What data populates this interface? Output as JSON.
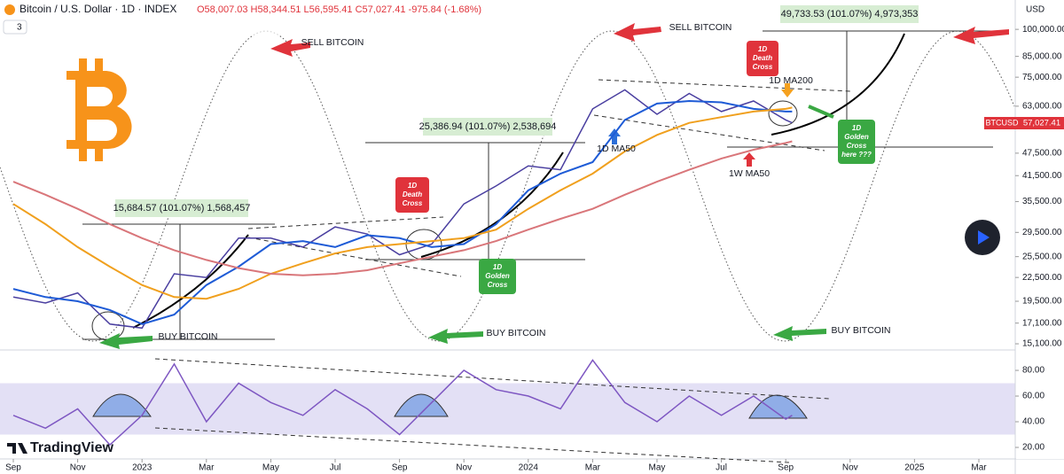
{
  "header": {
    "symbol": "Bitcoin / U.S. Dollar · 1D · INDEX",
    "ohlc": "O58,007.03 H58,344.51 L56,595.41 C57,027.41 -975.84 (-1.68%)",
    "indicators": "3",
    "currency": "USD",
    "ticker": "BTCUSD",
    "last_price": "57,027.41",
    "brand": "TradingView"
  },
  "chart_data": [
    {
      "type": "line",
      "log_scale": true,
      "grid": false,
      "x": [
        0,
        1,
        2,
        3,
        4,
        5,
        6,
        7,
        8,
        9,
        10,
        11,
        12,
        13,
        14,
        15,
        16,
        17,
        18,
        19,
        20,
        21,
        22,
        23,
        24,
        24.2
      ],
      "series": [
        {
          "color": "#4a3fa0",
          "values": [
            20000,
            19300,
            20500,
            17000,
            16600,
            23000,
            22500,
            28500,
            28500,
            27000,
            30500,
            29200,
            25800,
            27500,
            35000,
            39000,
            44000,
            43000,
            62000,
            69500,
            60000,
            68000,
            61000,
            65000,
            58000,
            57027.41
          ]
        },
        {
          "color": "#1e5bd6",
          "values": [
            21000,
            20000,
            19500,
            18500,
            17000,
            18000,
            21500,
            24000,
            27500,
            28000,
            27000,
            29000,
            28500,
            27000,
            27500,
            31000,
            38000,
            42000,
            45000,
            58000,
            64000,
            65000,
            64500,
            62000,
            61000,
            61000
          ]
        },
        {
          "color": "#f0a01e",
          "values": [
            35000,
            31000,
            27000,
            24000,
            21500,
            20000,
            19800,
            21000,
            23000,
            24500,
            26000,
            27000,
            27500,
            28000,
            28500,
            30000,
            34000,
            38000,
            42000,
            48000,
            53000,
            57000,
            59000,
            61000,
            62000,
            62500
          ]
        },
        {
          "color": "#d9767a",
          "values": [
            40000,
            37000,
            34000,
            31000,
            28500,
            26500,
            25000,
            23800,
            23000,
            22800,
            23000,
            23500,
            24500,
            25500,
            26500,
            28000,
            30000,
            32000,
            34000,
            37000,
            40000,
            43000,
            46000,
            48500,
            50500,
            51000
          ]
        }
      ],
      "xlim": [
        -0.413,
        31.13
      ],
      "xticks": [
        {
          "value": 0,
          "label": "Sep"
        },
        {
          "value": 2,
          "label": "Nov"
        },
        {
          "value": 4,
          "label": "2023"
        },
        {
          "value": 6,
          "label": "Mar"
        },
        {
          "value": 8,
          "label": "May"
        },
        {
          "value": 10,
          "label": "Jul"
        },
        {
          "value": 12,
          "label": "Sep"
        },
        {
          "value": 14,
          "label": "Nov"
        },
        {
          "value": 16,
          "label": "2024"
        },
        {
          "value": 18,
          "label": "Mar"
        },
        {
          "value": 20,
          "label": "May"
        },
        {
          "value": 22,
          "label": "Jul"
        },
        {
          "value": 24,
          "label": "Sep"
        },
        {
          "value": 26,
          "label": "Nov"
        },
        {
          "value": 28,
          "label": "2025"
        },
        {
          "value": 30,
          "label": "Mar"
        }
      ],
      "ylim": [
        14550,
        119300
      ],
      "yticks": [
        {
          "value": 100000,
          "label": "100,000.00"
        },
        {
          "value": 85000,
          "label": "85,000.00"
        },
        {
          "value": 75000,
          "label": "75,000.00"
        },
        {
          "value": 63000,
          "label": "63,000.00"
        },
        {
          "value": 47500,
          "label": "47,500.00"
        },
        {
          "value": 41500,
          "label": "41,500.00"
        },
        {
          "value": 35500,
          "label": "35,500.00"
        },
        {
          "value": 29500,
          "label": "29,500.00"
        },
        {
          "value": 25500,
          "label": "25,500.00"
        },
        {
          "value": 22500,
          "label": "22,500.00"
        },
        {
          "value": 19500,
          "label": "19,500.00"
        },
        {
          "value": 17100,
          "label": "17,100.00"
        },
        {
          "value": 15100,
          "label": "15,100.00"
        }
      ],
      "annotations": [
        {
          "lines": [
            "SELL BITCOIN"
          ]
        },
        {
          "lines": [
            "SELL BITCOIN"
          ]
        },
        {
          "lines": [
            "BUY BITCOIN"
          ]
        },
        {
          "lines": [
            "BUY BITCOIN"
          ]
        },
        {
          "lines": [
            "BUY BITCOIN"
          ]
        },
        {
          "lines": [
            "15,684.57 (101.07%) 1,568,457"
          ]
        },
        {
          "lines": [
            "25,386.94 (101.07%) 2,538,694"
          ]
        },
        {
          "lines": [
            "49,733.53 (101.07%) 4,973,353"
          ]
        },
        {
          "lines": [
            "1D",
            "Death",
            "Cross"
          ]
        },
        {
          "lines": [
            "1D",
            "Death",
            "Cross"
          ]
        },
        {
          "lines": [
            "1D",
            "Golden",
            "Cross"
          ]
        },
        {
          "lines": [
            "1D",
            "Golden",
            "Cross",
            "here ???"
          ]
        },
        {
          "lines": [
            "1D MA50"
          ]
        },
        {
          "lines": [
            "1D MA200"
          ]
        },
        {
          "lines": [
            "1W MA50"
          ]
        }
      ]
    },
    {
      "type": "line",
      "grid": false,
      "x": [
        0,
        1,
        2,
        3,
        4,
        5,
        6,
        7,
        8,
        9,
        10,
        11,
        12,
        13,
        14,
        15,
        16,
        17,
        18,
        19,
        20,
        21,
        22,
        23,
        24,
        24.2
      ],
      "series": [
        {
          "color": "#7e57c2",
          "values": [
            45,
            35,
            50,
            22,
            45,
            85,
            40,
            70,
            55,
            45,
            65,
            50,
            30,
            55,
            80,
            65,
            60,
            50,
            88,
            55,
            40,
            60,
            45,
            60,
            42,
            45
          ]
        }
      ],
      "xlim": [
        -0.413,
        31.13
      ],
      "ylim": [
        13.1,
        95.9
      ],
      "band": [
        30,
        70
      ],
      "yticks": [
        {
          "value": 80,
          "label": "80.00"
        },
        {
          "value": 60,
          "label": "60.00"
        },
        {
          "value": 40,
          "label": "40.00"
        },
        {
          "value": 20,
          "label": "20.00"
        }
      ]
    }
  ]
}
